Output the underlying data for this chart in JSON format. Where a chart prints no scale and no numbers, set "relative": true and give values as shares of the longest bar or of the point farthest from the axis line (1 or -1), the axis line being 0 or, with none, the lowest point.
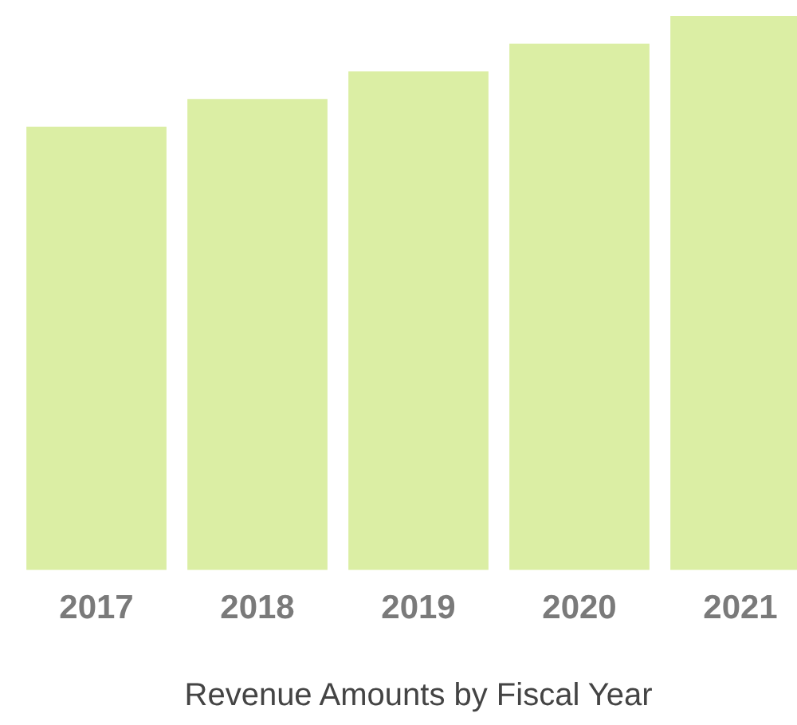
{
  "chart_data": {
    "type": "bar",
    "xlabel": "Revenue Amounts by Fiscal Year",
    "categories": [
      "2017",
      "2018",
      "2019",
      "2020",
      "2021"
    ],
    "values": [
      0.8,
      0.85,
      0.9,
      0.95,
      1
    ],
    "color": "#dbeea4",
    "relative": true,
    "grid": false,
    "legend": false
  }
}
